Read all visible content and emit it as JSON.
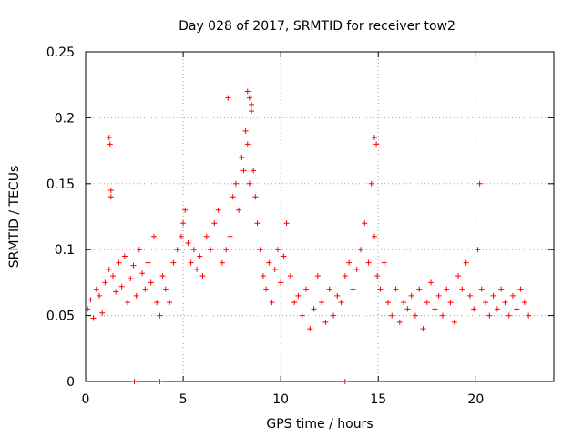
{
  "chart_data": {
    "type": "scatter",
    "title": "Day 028 of 2017, SRMTID for receiver tow2",
    "xlabel": "GPS time / hours",
    "ylabel": "SRMTID / TECUs",
    "xlim": [
      0,
      24
    ],
    "ylim": [
      0,
      0.25
    ],
    "xticks": [
      0,
      5,
      10,
      15,
      20
    ],
    "xtick_labels": [
      "0",
      "5",
      "10",
      "15",
      "20"
    ],
    "yticks": [
      0,
      0.05,
      0.1,
      0.15,
      0.2,
      0.25
    ],
    "ytick_labels": [
      "0",
      "0.05",
      "0.1",
      "0.15",
      "0.2",
      "0.25"
    ],
    "grid": true,
    "marker": "+",
    "color": "#ff0000",
    "series": [
      {
        "name": "SRMTID",
        "x": [
          0.1,
          0.25,
          0.4,
          0.55,
          0.7,
          0.85,
          1.0,
          1.2,
          1.3,
          1.4,
          1.55,
          1.7,
          1.85,
          2.0,
          2.15,
          2.3,
          2.45,
          2.6,
          2.75,
          2.9,
          3.05,
          3.2,
          3.35,
          3.5,
          3.65,
          3.8,
          3.95,
          4.1,
          4.3,
          4.5,
          4.7,
          4.9,
          5.0,
          5.1,
          5.25,
          5.4,
          5.55,
          5.7,
          5.85,
          6.0,
          6.2,
          6.4,
          6.6,
          6.8,
          7.0,
          7.2,
          7.4,
          7.55,
          7.7,
          7.85,
          8.0,
          8.1,
          8.2,
          8.3,
          8.4,
          8.5,
          8.6,
          8.7,
          8.8,
          8.95,
          9.1,
          9.25,
          9.4,
          9.55,
          9.7,
          9.85,
          10.0,
          10.15,
          10.3,
          10.5,
          10.7,
          10.9,
          11.1,
          11.3,
          11.5,
          11.7,
          11.9,
          12.1,
          12.3,
          12.5,
          12.7,
          12.9,
          13.1,
          13.3,
          13.5,
          13.7,
          13.9,
          14.1,
          14.3,
          14.5,
          14.65,
          14.8,
          14.95,
          15.1,
          15.3,
          15.5,
          15.7,
          15.9,
          16.1,
          16.3,
          16.5,
          16.7,
          16.9,
          17.1,
          17.3,
          17.5,
          17.7,
          17.9,
          18.1,
          18.3,
          18.5,
          18.7,
          18.9,
          19.1,
          19.3,
          19.5,
          19.7,
          19.9,
          20.1,
          20.3,
          20.5,
          20.7,
          20.9,
          21.1,
          21.3,
          21.5,
          21.7,
          21.9,
          22.1,
          22.3,
          22.5,
          22.7,
          1.2,
          1.25,
          1.3,
          8.3,
          8.4,
          8.5,
          7.3,
          14.8,
          14.9,
          20.2,
          2.5,
          3.8,
          13.3
        ],
        "y": [
          0.055,
          0.062,
          0.048,
          0.07,
          0.065,
          0.052,
          0.075,
          0.085,
          0.14,
          0.08,
          0.068,
          0.09,
          0.072,
          0.095,
          0.06,
          0.078,
          0.088,
          0.065,
          0.1,
          0.082,
          0.07,
          0.09,
          0.075,
          0.11,
          0.06,
          0.05,
          0.08,
          0.07,
          0.06,
          0.09,
          0.1,
          0.11,
          0.12,
          0.13,
          0.105,
          0.09,
          0.1,
          0.085,
          0.095,
          0.08,
          0.11,
          0.1,
          0.12,
          0.13,
          0.09,
          0.1,
          0.11,
          0.14,
          0.15,
          0.13,
          0.17,
          0.16,
          0.19,
          0.18,
          0.15,
          0.21,
          0.16,
          0.14,
          0.12,
          0.1,
          0.08,
          0.07,
          0.09,
          0.06,
          0.085,
          0.1,
          0.075,
          0.095,
          0.12,
          0.08,
          0.06,
          0.065,
          0.05,
          0.07,
          0.04,
          0.055,
          0.08,
          0.06,
          0.045,
          0.07,
          0.05,
          0.065,
          0.06,
          0.08,
          0.09,
          0.07,
          0.085,
          0.1,
          0.12,
          0.09,
          0.15,
          0.11,
          0.08,
          0.07,
          0.09,
          0.06,
          0.05,
          0.07,
          0.045,
          0.06,
          0.055,
          0.065,
          0.05,
          0.07,
          0.04,
          0.06,
          0.075,
          0.055,
          0.065,
          0.05,
          0.07,
          0.06,
          0.045,
          0.08,
          0.07,
          0.09,
          0.065,
          0.055,
          0.1,
          0.07,
          0.06,
          0.05,
          0.065,
          0.055,
          0.07,
          0.06,
          0.05,
          0.065,
          0.055,
          0.07,
          0.06,
          0.05,
          0.185,
          0.18,
          0.145,
          0.22,
          0.215,
          0.205,
          0.215,
          0.185,
          0.18,
          0.15,
          0.0,
          0.0,
          0.0
        ]
      }
    ]
  }
}
